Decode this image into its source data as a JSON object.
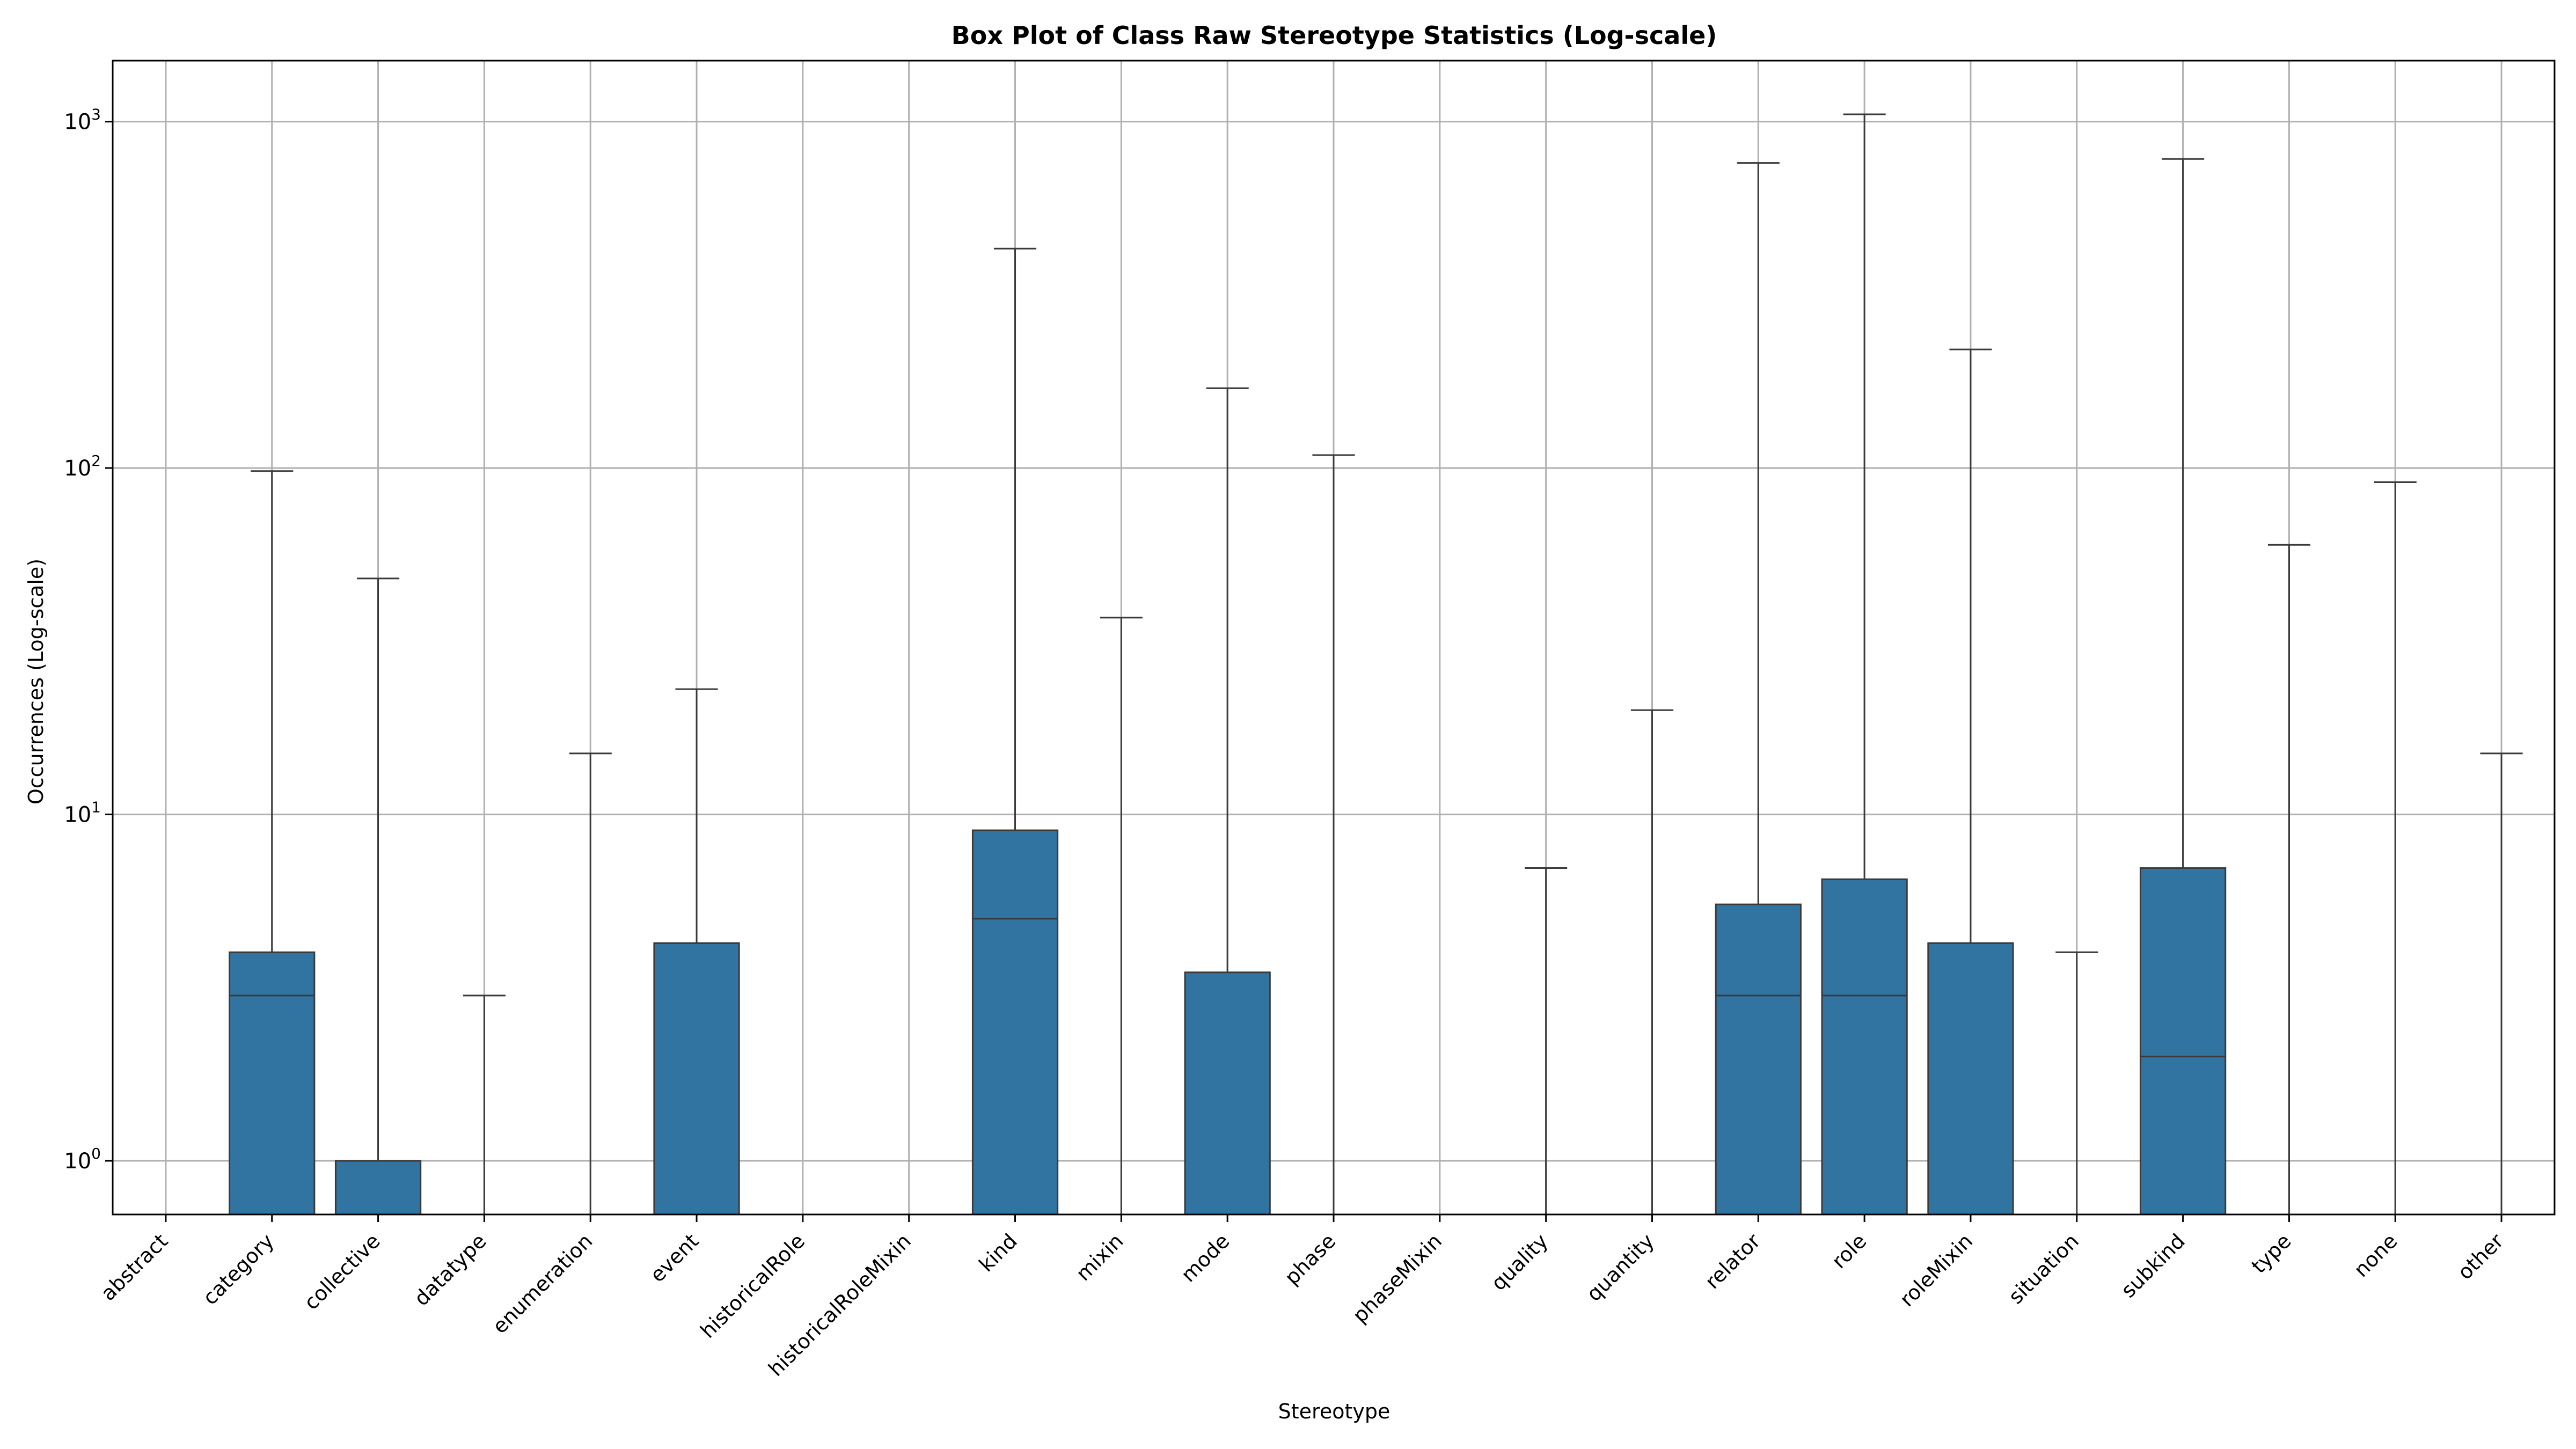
{
  "chart_data": {
    "type": "box",
    "title": "Box Plot of Class Raw Stereotype Statistics (Log-scale)",
    "xlabel": "Stereotype",
    "ylabel": "Occurrences (Log-scale)",
    "yscale": "log",
    "ylim": [
      0.7,
      1500
    ],
    "yticks": [
      {
        "base": "10",
        "exp": "0",
        "value": 1
      },
      {
        "base": "10",
        "exp": "1",
        "value": 10
      },
      {
        "base": "10",
        "exp": "2",
        "value": 100
      },
      {
        "base": "10",
        "exp": "3",
        "value": 1000
      }
    ],
    "grid": true,
    "categories": [
      {
        "name": "abstract",
        "color": "#000000",
        "q1": null,
        "median": null,
        "q3": null,
        "whisker_high": null
      },
      {
        "name": "category",
        "color": "#000000",
        "q1": 0.7,
        "median": 3,
        "q3": 4,
        "whisker_high": 98
      },
      {
        "name": "collective",
        "color": "#000000",
        "q1": 0.7,
        "median": 1,
        "q3": 1,
        "whisker_high": 48
      },
      {
        "name": "datatype",
        "color": "#000000",
        "q1": null,
        "median": 3,
        "q3": null,
        "whisker_high": 3
      },
      {
        "name": "enumeration",
        "color": "#000000",
        "q1": null,
        "median": null,
        "q3": null,
        "whisker_high": 15
      },
      {
        "name": "event",
        "color": "#000000",
        "q1": 0.7,
        "median": null,
        "q3": 4.25,
        "whisker_high": 23
      },
      {
        "name": "historicalRole",
        "color": "#000000",
        "q1": null,
        "median": null,
        "q3": null,
        "whisker_high": null
      },
      {
        "name": "historicalRoleMixin",
        "color": "#000000",
        "q1": null,
        "median": null,
        "q3": null,
        "whisker_high": null
      },
      {
        "name": "kind",
        "color": "#000000",
        "q1": 0.7,
        "median": 5,
        "q3": 9,
        "whisker_high": 430
      },
      {
        "name": "mixin",
        "color": "#000000",
        "q1": null,
        "median": null,
        "q3": null,
        "whisker_high": 37
      },
      {
        "name": "mode",
        "color": "#000000",
        "q1": 0.7,
        "median": null,
        "q3": 3.5,
        "whisker_high": 170
      },
      {
        "name": "phase",
        "color": "#000000",
        "q1": null,
        "median": null,
        "q3": null,
        "whisker_high": 109
      },
      {
        "name": "phaseMixin",
        "color": "#000000",
        "q1": null,
        "median": null,
        "q3": null,
        "whisker_high": null
      },
      {
        "name": "quality",
        "color": "#000000",
        "q1": null,
        "median": null,
        "q3": null,
        "whisker_high": 7
      },
      {
        "name": "quantity",
        "color": "#000000",
        "q1": null,
        "median": null,
        "q3": null,
        "whisker_high": 20
      },
      {
        "name": "relator",
        "color": "#000000",
        "q1": 0.7,
        "median": 3,
        "q3": 5.5,
        "whisker_high": 760
      },
      {
        "name": "role",
        "color": "#000000",
        "q1": 0.7,
        "median": 3,
        "q3": 6.5,
        "whisker_high": 1050
      },
      {
        "name": "roleMixin",
        "color": "#000000",
        "q1": 0.7,
        "median": null,
        "q3": 4.25,
        "whisker_high": 220
      },
      {
        "name": "situation",
        "color": "#000000",
        "q1": null,
        "median": 4,
        "q3": null,
        "whisker_high": 4
      },
      {
        "name": "subkind",
        "color": "#000000",
        "q1": 0.7,
        "median": 2,
        "q3": 7,
        "whisker_high": 780
      },
      {
        "name": "type",
        "color": "#000000",
        "q1": null,
        "median": null,
        "q3": null,
        "whisker_high": 60
      },
      {
        "name": "none",
        "color": "#0000ff",
        "q1": null,
        "median": null,
        "q3": null,
        "whisker_high": 91
      },
      {
        "name": "other",
        "color": "#ff0000",
        "q1": null,
        "median": null,
        "q3": null,
        "whisker_high": 15
      }
    ],
    "box_color": "#3274a1"
  }
}
